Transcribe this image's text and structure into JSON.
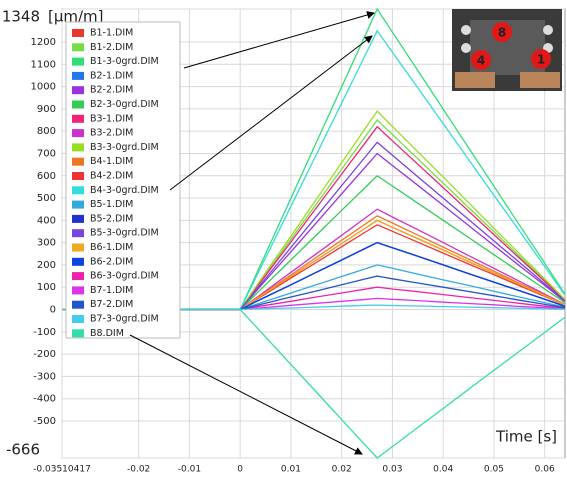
{
  "chart_data": {
    "type": "line",
    "y_label": "[µm/m]",
    "x_label": "Time [s]",
    "inset_labels": [
      "8",
      "4",
      "1"
    ],
    "x": [
      -0.035,
      -0.02,
      -0.01,
      0,
      0.005,
      0.01,
      0.015,
      0.02,
      0.025,
      0.027,
      0.03,
      0.035,
      0.04,
      0.045,
      0.05,
      0.055,
      0.06,
      0.064
    ],
    "xlim": [
      -0.03510417,
      0.064
    ],
    "xticks": [
      -0.03510417,
      -0.02,
      -0.01,
      0,
      0.01,
      0.02,
      0.03,
      0.04,
      0.05,
      0.06
    ],
    "ylim": [
      -666,
      1348
    ],
    "yticks": [
      -666,
      -500,
      -400,
      -300,
      -200,
      -100,
      0,
      100,
      200,
      300,
      400,
      500,
      600,
      700,
      800,
      900,
      1000,
      1100,
      1200,
      1348
    ],
    "grid": true,
    "series": [
      {
        "name": "B1-1.DIM",
        "color": "#e8372c",
        "values": [
          0,
          0,
          0,
          0,
          74,
          148,
          222,
          296,
          370,
          400,
          369,
          318,
          267,
          215,
          164,
          113,
          62,
          20
        ]
      },
      {
        "name": "B1-2.DIM",
        "color": "#77dd44",
        "values": [
          0,
          0,
          0,
          0,
          157,
          315,
          473,
          630,
          787,
          850,
          785,
          676,
          567,
          457,
          349,
          240,
          131,
          43
        ]
      },
      {
        "name": "B1-3-0grd.DIM",
        "color": "#33dd77",
        "values": [
          0,
          0,
          0,
          0,
          249,
          499,
          749,
          999,
          1248,
          1348,
          1244,
          1072,
          899,
          725,
          553,
          380,
          208,
          69
        ]
      },
      {
        "name": "B2-1.DIM",
        "color": "#2277ee",
        "values": [
          0,
          0,
          0,
          0,
          56,
          111,
          167,
          222,
          278,
          300,
          277,
          239,
          200,
          161,
          123,
          85,
          46,
          15
        ]
      },
      {
        "name": "B2-2.DIM",
        "color": "#9933dd",
        "values": [
          0,
          0,
          0,
          0,
          130,
          259,
          389,
          519,
          648,
          700,
          646,
          557,
          467,
          377,
          287,
          197,
          108,
          36
        ]
      },
      {
        "name": "B2-3-0grd.DIM",
        "color": "#33cc55",
        "values": [
          0,
          0,
          0,
          0,
          111,
          222,
          334,
          445,
          556,
          600,
          554,
          477,
          400,
          323,
          246,
          169,
          92,
          31
        ]
      },
      {
        "name": "B3-1.DIM",
        "color": "#ee2277",
        "values": [
          0,
          0,
          0,
          0,
          152,
          303,
          456,
          608,
          759,
          820,
          757,
          652,
          547,
          441,
          336,
          231,
          126,
          42
        ]
      },
      {
        "name": "B3-2.DIM",
        "color": "#cc33cc",
        "values": [
          0,
          0,
          0,
          0,
          83,
          167,
          250,
          333,
          417,
          450,
          415,
          358,
          300,
          242,
          185,
          127,
          69,
          23
        ]
      },
      {
        "name": "B3-3-0grd.DIM",
        "color": "#99dd22",
        "values": [
          0,
          0,
          0,
          0,
          165,
          329,
          495,
          659,
          824,
          890,
          821,
          708,
          594,
          479,
          365,
          251,
          137,
          45
        ]
      },
      {
        "name": "B4-1.DIM",
        "color": "#ee7722",
        "values": [
          0,
          0,
          0,
          0,
          78,
          155,
          234,
          311,
          389,
          420,
          388,
          334,
          280,
          226,
          172,
          118,
          65,
          21
        ]
      },
      {
        "name": "B4-2.DIM",
        "color": "#ee3333",
        "values": [
          0,
          0,
          0,
          0,
          70,
          141,
          211,
          282,
          352,
          380,
          351,
          302,
          253,
          204,
          156,
          107,
          59,
          19
        ]
      },
      {
        "name": "B4-3-0grd.DIM",
        "color": "#33dddd",
        "values": [
          0,
          0,
          0,
          0,
          231,
          463,
          695,
          926,
          1158,
          1250,
          1154,
          994,
          834,
          673,
          513,
          353,
          193,
          64
        ]
      },
      {
        "name": "B5-1.DIM",
        "color": "#33aadd",
        "values": [
          0,
          0,
          0,
          0,
          37,
          74,
          111,
          148,
          185,
          200,
          185,
          159,
          133,
          108,
          82,
          56,
          31,
          10
        ]
      },
      {
        "name": "B5-2.DIM",
        "color": "#2233cc",
        "values": [
          0,
          0,
          0,
          0,
          56,
          111,
          167,
          222,
          278,
          300,
          277,
          239,
          200,
          161,
          123,
          85,
          46,
          15
        ]
      },
      {
        "name": "B5-3-0grd.DIM",
        "color": "#7744dd",
        "values": [
          0,
          0,
          0,
          0,
          139,
          278,
          417,
          556,
          695,
          750,
          692,
          596,
          500,
          404,
          308,
          212,
          116,
          38
        ]
      },
      {
        "name": "B6-1.DIM",
        "color": "#eeaa22",
        "values": [
          0,
          0,
          0,
          0,
          74,
          148,
          222,
          296,
          370,
          400,
          369,
          318,
          267,
          215,
          164,
          113,
          62,
          20
        ]
      },
      {
        "name": "B6-2.DIM",
        "color": "#1144dd",
        "values": [
          0,
          0,
          0,
          0,
          56,
          111,
          167,
          222,
          278,
          300,
          277,
          239,
          200,
          161,
          123,
          85,
          46,
          15
        ]
      },
      {
        "name": "B6-3-0grd.DIM",
        "color": "#ee22aa",
        "values": [
          0,
          0,
          0,
          0,
          19,
          37,
          56,
          74,
          93,
          100,
          92,
          80,
          67,
          54,
          41,
          28,
          15,
          5
        ]
      },
      {
        "name": "B7-1.DIM",
        "color": "#dd33ee",
        "values": [
          0,
          0,
          0,
          0,
          9,
          19,
          28,
          37,
          46,
          50,
          46,
          40,
          33,
          27,
          21,
          14,
          8,
          3
        ]
      },
      {
        "name": "B7-2.DIM",
        "color": "#2255cc",
        "values": [
          0,
          0,
          0,
          0,
          28,
          56,
          83,
          111,
          139,
          150,
          138,
          119,
          100,
          81,
          62,
          42,
          23,
          8
        ]
      },
      {
        "name": "B7-3-0grd.DIM",
        "color": "#44ccee",
        "values": [
          0,
          0,
          0,
          0,
          4,
          7,
          11,
          15,
          19,
          20,
          18,
          16,
          13,
          11,
          8,
          6,
          3,
          1
        ]
      },
      {
        "name": "B8.DIM",
        "color": "#33ddaa",
        "values": [
          0,
          0,
          0,
          0,
          -123,
          -246,
          -370,
          -494,
          -617,
          -666,
          -615,
          -529,
          -444,
          -358,
          -273,
          -188,
          -103,
          -34
        ]
      }
    ]
  }
}
